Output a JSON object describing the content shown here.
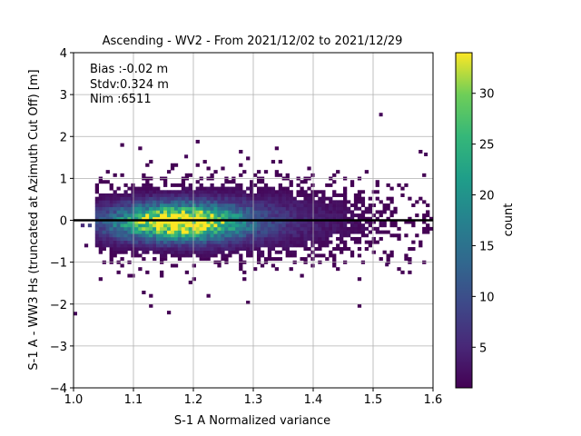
{
  "chart_data": {
    "type": "heatmap",
    "title": "Ascending - WV2 - From 2021/12/02 to 2021/12/29",
    "xlabel": "S-1 A Normalized variance",
    "ylabel": "S-1 A - WW3 Hs (truncated at Azimuth Cut Off) [m]",
    "xlim": [
      1.0,
      1.6
    ],
    "ylim": [
      -4,
      4
    ],
    "x_ticks": [
      "1.0",
      "1.1",
      "1.2",
      "1.3",
      "1.4",
      "1.5",
      "1.6"
    ],
    "y_ticks": [
      "−4",
      "−3",
      "−2",
      "−1",
      "0",
      "1",
      "2",
      "3",
      "4"
    ],
    "grid": true,
    "reference_line_y": 0,
    "annotations": [
      "Bias :-0.02 m",
      "Stdv:0.324 m",
      "Nim :6511"
    ],
    "colorbar": {
      "label": "count",
      "range": [
        1,
        34
      ],
      "ticks": [
        "5",
        "10",
        "15",
        "20",
        "25",
        "30"
      ],
      "colormap": "viridis"
    },
    "density_model": {
      "peak_count": 34,
      "center_x": 1.17,
      "center_y": -0.08,
      "x_range_nonzero": [
        1.0,
        1.58
      ],
      "y_range_nonzero": [
        -2.3,
        2.5
      ]
    }
  }
}
